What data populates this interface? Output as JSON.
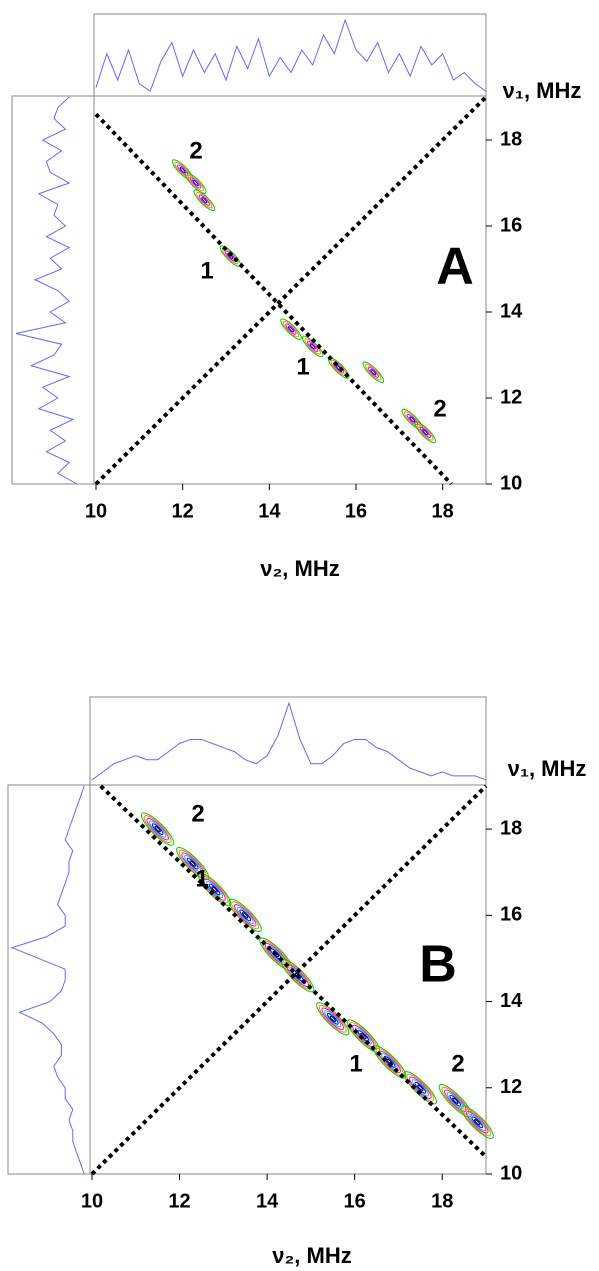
{
  "chart_data": [
    {
      "type": "contour",
      "label": "A",
      "xlabel": "ν₂, MHz",
      "ylabel": "ν₁, MHz",
      "xlim": [
        10,
        19
      ],
      "ylim": [
        10,
        19
      ],
      "xticks": [
        10,
        12,
        14,
        16,
        18
      ],
      "yticks": [
        10,
        12,
        14,
        16,
        18
      ],
      "x": [
        12.0,
        12.3,
        12.5,
        13.1,
        14.5,
        15.0,
        15.6,
        16.4,
        17.3,
        17.6
      ],
      "values": [
        17.3,
        17.0,
        16.6,
        15.3,
        13.6,
        13.2,
        12.7,
        12.6,
        11.5,
        11.2
      ],
      "contour_colors": [
        "#00cc00",
        "#ff8800",
        "#ff00ff",
        "#0000ff"
      ],
      "annotations": [
        "2",
        "1",
        "1",
        "2"
      ],
      "projection_color": "#6666ff",
      "projection_x": [
        10,
        10.25,
        10.5,
        10.75,
        11,
        11.25,
        11.5,
        11.75,
        12,
        12.25,
        12.5,
        12.75,
        13,
        13.25,
        13.5,
        13.75,
        14,
        14.25,
        14.5,
        14.75,
        15,
        15.25,
        15.5,
        15.75,
        16,
        16.25,
        16.5,
        16.75,
        17,
        17.25,
        17.5,
        17.75,
        18,
        18.25,
        18.5,
        18.75,
        19
      ],
      "top_projection": [
        10,
        55,
        20,
        60,
        15,
        5,
        45,
        70,
        25,
        60,
        30,
        55,
        20,
        65,
        35,
        75,
        25,
        50,
        30,
        60,
        40,
        80,
        55,
        100,
        60,
        45,
        70,
        30,
        55,
        25,
        65,
        40,
        55,
        20,
        30,
        15,
        5
      ],
      "left_projection": [
        20,
        45,
        30,
        60,
        35,
        55,
        25,
        70,
        45,
        65,
        30,
        80,
        50,
        40,
        100,
        35,
        55,
        30,
        45,
        75,
        40,
        55,
        30,
        60,
        35,
        50,
        45,
        70,
        30,
        55,
        60,
        40,
        65,
        35,
        50,
        45,
        30
      ]
    },
    {
      "type": "contour",
      "label": "B",
      "xlabel": "ν₂, MHz",
      "ylabel": "ν₁, MHz",
      "xlim": [
        10,
        19
      ],
      "ylim": [
        10,
        19
      ],
      "xticks": [
        10,
        12,
        14,
        16,
        18
      ],
      "yticks": [
        10,
        12,
        14,
        16,
        18
      ],
      "x": [
        11.5,
        12.3,
        12.8,
        13.5,
        14.2,
        14.7,
        15.5,
        16.2,
        16.8,
        17.5,
        18.3,
        18.8
      ],
      "values": [
        18.0,
        17.2,
        16.6,
        16.0,
        15.1,
        14.6,
        13.6,
        13.2,
        12.6,
        12.0,
        11.7,
        11.2
      ],
      "contour_colors": [
        "#00cc00",
        "#ff8800",
        "#ff00ff",
        "#00cccc",
        "#0000ff",
        "#000000"
      ],
      "annotations": [
        "2",
        "1",
        "1",
        "2"
      ],
      "projection_color": "#6666ff",
      "projection_x": [
        10,
        10.25,
        10.5,
        10.75,
        11,
        11.25,
        11.5,
        11.75,
        12,
        12.25,
        12.5,
        12.75,
        13,
        13.25,
        13.5,
        13.75,
        14,
        14.25,
        14.5,
        14.75,
        15,
        15.25,
        15.5,
        15.75,
        16,
        16.25,
        16.5,
        16.75,
        17,
        17.25,
        17.5,
        17.75,
        18,
        18.25,
        18.5,
        18.75,
        19
      ],
      "top_projection": [
        5,
        15,
        25,
        30,
        35,
        30,
        30,
        40,
        50,
        55,
        55,
        50,
        45,
        40,
        30,
        25,
        35,
        60,
        100,
        55,
        25,
        25,
        35,
        50,
        55,
        55,
        45,
        40,
        30,
        20,
        15,
        10,
        15,
        10,
        10,
        10,
        5
      ],
      "left_projection": [
        5,
        10,
        15,
        20,
        20,
        25,
        20,
        30,
        30,
        40,
        45,
        35,
        35,
        45,
        60,
        90,
        50,
        35,
        30,
        30,
        65,
        100,
        55,
        30,
        30,
        40,
        35,
        30,
        25,
        25,
        20,
        30,
        25,
        20,
        15,
        10,
        5
      ]
    }
  ]
}
